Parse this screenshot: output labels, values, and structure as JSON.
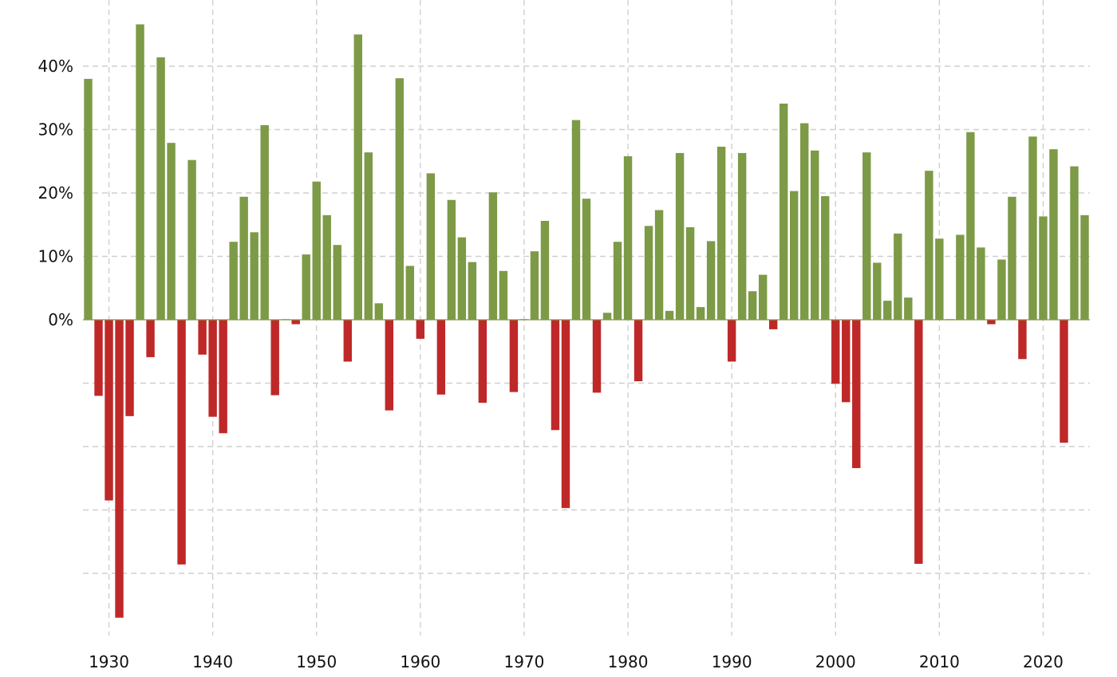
{
  "chart_data": {
    "type": "bar",
    "title": "",
    "xlabel": "",
    "ylabel": "",
    "x": [
      1928,
      1929,
      1930,
      1931,
      1932,
      1933,
      1934,
      1935,
      1936,
      1937,
      1938,
      1939,
      1940,
      1941,
      1942,
      1943,
      1944,
      1945,
      1946,
      1947,
      1948,
      1949,
      1950,
      1951,
      1952,
      1953,
      1954,
      1955,
      1956,
      1957,
      1958,
      1959,
      1960,
      1961,
      1962,
      1963,
      1964,
      1965,
      1966,
      1967,
      1968,
      1969,
      1970,
      1971,
      1972,
      1973,
      1974,
      1975,
      1976,
      1977,
      1978,
      1979,
      1980,
      1981,
      1982,
      1983,
      1984,
      1985,
      1986,
      1987,
      1988,
      1989,
      1990,
      1991,
      1992,
      1993,
      1994,
      1995,
      1996,
      1997,
      1998,
      1999,
      2000,
      2001,
      2002,
      2003,
      2004,
      2005,
      2006,
      2007,
      2008,
      2009,
      2010,
      2011,
      2012,
      2013,
      2014,
      2015,
      2016,
      2017,
      2018,
      2019,
      2020,
      2021,
      2022,
      2023,
      2024
    ],
    "values": [
      38.0,
      -12.0,
      -28.5,
      -47.0,
      -15.2,
      46.6,
      -5.9,
      41.4,
      27.9,
      -38.6,
      25.2,
      -5.5,
      -15.3,
      -17.9,
      12.3,
      19.4,
      13.8,
      30.7,
      -11.9,
      0.0,
      -0.7,
      10.3,
      21.8,
      16.5,
      11.8,
      -6.6,
      45.0,
      26.4,
      2.6,
      -14.3,
      38.1,
      8.5,
      -3.0,
      23.1,
      -11.8,
      18.9,
      13.0,
      9.1,
      -13.1,
      20.1,
      7.7,
      -11.4,
      0.1,
      10.8,
      15.6,
      -17.4,
      -29.7,
      31.5,
      19.1,
      -11.5,
      1.1,
      12.3,
      25.8,
      -9.7,
      14.8,
      17.3,
      1.4,
      26.3,
      14.6,
      2.0,
      12.4,
      27.3,
      -6.6,
      26.3,
      4.5,
      7.1,
      -1.5,
      34.1,
      20.3,
      31.0,
      26.7,
      19.5,
      -10.1,
      -13.0,
      -23.4,
      26.4,
      9.0,
      3.0,
      13.6,
      3.5,
      -38.5,
      23.5,
      12.8,
      0.0,
      13.4,
      29.6,
      11.4,
      -0.7,
      9.5,
      19.4,
      -6.2,
      28.9,
      16.3,
      26.9,
      -19.4,
      24.2,
      16.5
    ],
    "y_ticks": [
      {
        "value": 0,
        "label": "0%"
      },
      {
        "value": 10,
        "label": "10%"
      },
      {
        "value": 20,
        "label": "20%"
      },
      {
        "value": 30,
        "label": "30%"
      },
      {
        "value": 40,
        "label": "40%"
      }
    ],
    "y_grid_below_zero": [
      -10,
      -20,
      -30,
      -40
    ],
    "x_ticks": [
      {
        "value": 1930,
        "label": "1930"
      },
      {
        "value": 1940,
        "label": "1940"
      },
      {
        "value": 1950,
        "label": "1950"
      },
      {
        "value": 1960,
        "label": "1960"
      },
      {
        "value": 1970,
        "label": "1970"
      },
      {
        "value": 1980,
        "label": "1980"
      },
      {
        "value": 1990,
        "label": "1990"
      },
      {
        "value": 2000,
        "label": "2000"
      },
      {
        "value": 2010,
        "label": "2010"
      },
      {
        "value": 2020,
        "label": "2020"
      }
    ],
    "xlim": [
      1927.5,
      2024.5
    ],
    "ylim": [
      -50,
      50
    ],
    "grid": true,
    "legend": "none",
    "colors": {
      "positive": "#7d9a47",
      "negative": "#bf2828",
      "grid": "#cfcfcf"
    }
  }
}
